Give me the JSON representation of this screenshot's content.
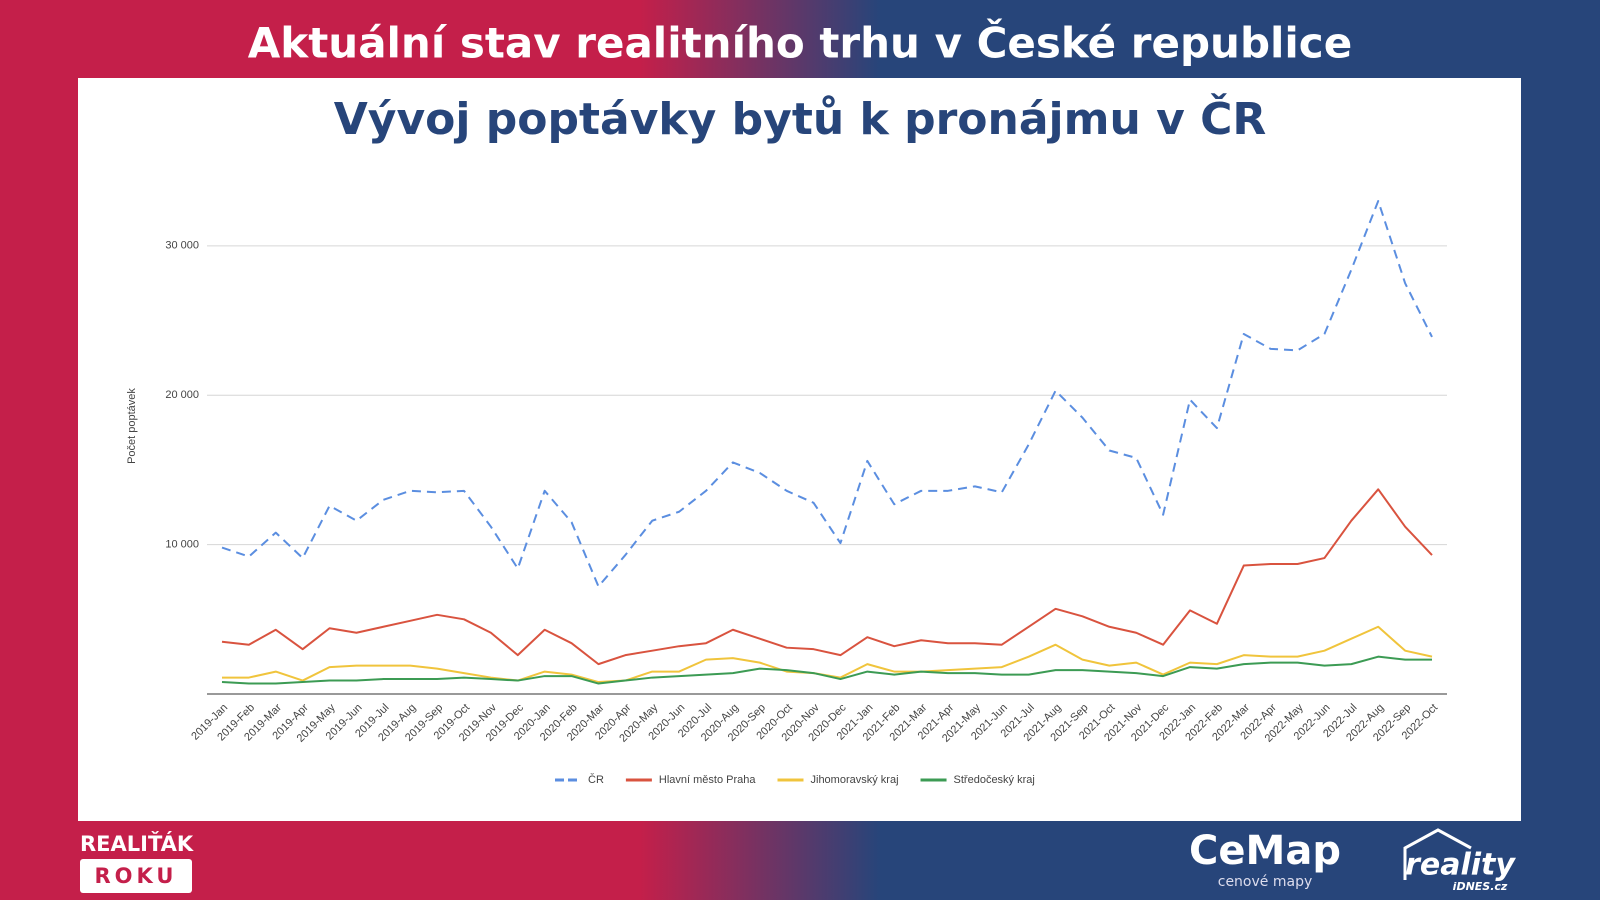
{
  "header": {
    "title": "Aktuální stav realitního trhu v České republice"
  },
  "chart_data": {
    "type": "line",
    "title": "Vývoj poptávky bytů k pronájmu v ČR",
    "y_label": "Počet poptávek",
    "categories": [
      "2019-Jan",
      "2019-Feb",
      "2019-Mar",
      "2019-Apr",
      "2019-May",
      "2019-Jun",
      "2019-Jul",
      "2019-Aug",
      "2019-Sep",
      "2019-Oct",
      "2019-Nov",
      "2019-Dec",
      "2020-Jan",
      "2020-Feb",
      "2020-Mar",
      "2020-Apr",
      "2020-May",
      "2020-Jun",
      "2020-Jul",
      "2020-Aug",
      "2020-Sep",
      "2020-Oct",
      "2020-Nov",
      "2020-Dec",
      "2021-Jan",
      "2021-Feb",
      "2021-Mar",
      "2021-Apr",
      "2021-May",
      "2021-Jun",
      "2021-Jul",
      "2021-Aug",
      "2021-Sep",
      "2021-Oct",
      "2021-Nov",
      "2021-Dec",
      "2022-Jan",
      "2022-Feb",
      "2022-Mar",
      "2022-Apr",
      "2022-May",
      "2022-Jun",
      "2022-Jul",
      "2022-Aug",
      "2022-Sep",
      "2022-Oct"
    ],
    "series": [
      {
        "name": "ČR",
        "color": "#5b8ee0",
        "dash": true,
        "values": [
          9800,
          9200,
          10800,
          9100,
          12600,
          11600,
          13000,
          13600,
          13500,
          13600,
          11200,
          8400,
          13600,
          11500,
          7200,
          9300,
          11600,
          12200,
          13600,
          15500,
          14800,
          13600,
          12800,
          10100,
          15600,
          12700,
          13600,
          13600,
          13900,
          13500,
          16700,
          20300,
          18500,
          16300,
          15800,
          12000,
          19700,
          17800,
          24100,
          23100,
          23000,
          24100,
          28400,
          33000,
          27500,
          23900
        ]
      },
      {
        "name": "Hlavní město Praha",
        "color": "#d9533f",
        "dash": false,
        "values": [
          3500,
          3300,
          4300,
          3000,
          4400,
          4100,
          4500,
          4900,
          5300,
          5000,
          4100,
          2600,
          4300,
          3400,
          2000,
          2600,
          2900,
          3200,
          3400,
          4300,
          3700,
          3100,
          3000,
          2600,
          3800,
          3200,
          3600,
          3400,
          3400,
          3300,
          4500,
          5700,
          5200,
          4500,
          4100,
          3300,
          5600,
          4700,
          8600,
          8700,
          8700,
          9100,
          11600,
          13700,
          11200,
          9300
        ]
      },
      {
        "name": "Jihomoravský kraj",
        "color": "#f0c43c",
        "dash": false,
        "values": [
          1100,
          1100,
          1500,
          900,
          1800,
          1900,
          1900,
          1900,
          1700,
          1400,
          1100,
          900,
          1500,
          1300,
          800,
          900,
          1500,
          1500,
          2300,
          2400,
          2100,
          1500,
          1400,
          1100,
          2000,
          1500,
          1500,
          1600,
          1700,
          1800,
          2500,
          3300,
          2300,
          1900,
          2100,
          1300,
          2100,
          2000,
          2600,
          2500,
          2500,
          2900,
          3700,
          4500,
          2900,
          2500
        ]
      },
      {
        "name": "Středočeský kraj",
        "color": "#3c9b54",
        "dash": false,
        "values": [
          800,
          700,
          700,
          800,
          900,
          900,
          1000,
          1000,
          1000,
          1100,
          1000,
          900,
          1200,
          1200,
          700,
          900,
          1100,
          1200,
          1300,
          1400,
          1700,
          1600,
          1400,
          1000,
          1500,
          1300,
          1500,
          1400,
          1400,
          1300,
          1300,
          1600,
          1600,
          1500,
          1400,
          1200,
          1800,
          1700,
          2000,
          2100,
          2100,
          1900,
          2000,
          2500,
          2300,
          2300
        ]
      }
    ],
    "ylim": [
      0,
      33000
    ],
    "yticks": [
      {
        "value": 10000,
        "label": "10 000"
      },
      {
        "value": 20000,
        "label": "20 000"
      },
      {
        "value": 30000,
        "label": "30 000"
      }
    ],
    "grid": true
  },
  "footer": {
    "brand_top": "REALIŤÁK",
    "brand_bottom": "ROKU",
    "cemap": "CeMap",
    "cemap_sub": "cenové mapy",
    "reality": "reality",
    "reality_sub": "iDNES.cz"
  }
}
